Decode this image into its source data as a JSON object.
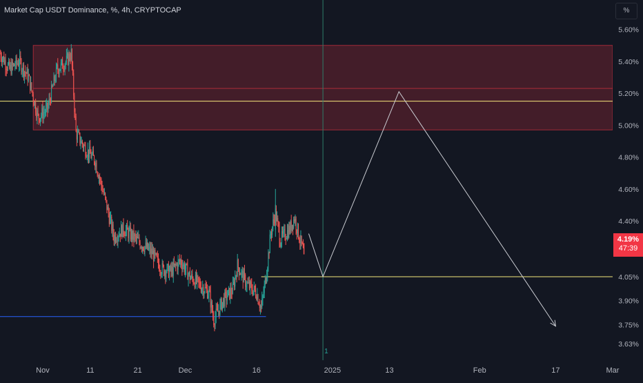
{
  "header": {
    "title": "Market Cap USDT Dominance, %, 4h, CRYPTOCAP",
    "scale_mode": "%"
  },
  "price_badge": {
    "value": "4.19%",
    "countdown": "47:39",
    "color": "#f23645"
  },
  "colors": {
    "background": "#131722",
    "candle_up": "#26a69a",
    "candle_down": "#ef5350",
    "resistance_zone": "#f23645",
    "yellow_line": "#f6e97c",
    "blue_line": "#2962ff",
    "projection": "#c9cbd1",
    "crosshair": "#2e7d6a"
  },
  "marker": {
    "label": "1"
  },
  "chart_data": {
    "type": "candlestick",
    "title": "Market Cap USDT Dominance, %, 4h, CRYPTOCAP",
    "y_unit": "%",
    "ylim": [
      3.6,
      5.62
    ],
    "y_ticks": [
      {
        "value": 5.6,
        "label": "5.60%"
      },
      {
        "value": 5.4,
        "label": "5.40%"
      },
      {
        "value": 5.2,
        "label": "5.20%"
      },
      {
        "value": 5.0,
        "label": "5.00%"
      },
      {
        "value": 4.8,
        "label": "4.80%"
      },
      {
        "value": 4.6,
        "label": "4.60%"
      },
      {
        "value": 4.4,
        "label": "4.40%"
      },
      {
        "value": 4.05,
        "label": "4.05%"
      },
      {
        "value": 3.9,
        "label": "3.90%"
      },
      {
        "value": 3.75,
        "label": "3.75%"
      },
      {
        "value": 3.63,
        "label": "3.63%"
      }
    ],
    "xlim": [
      "2024-10-23",
      "2025-03-01"
    ],
    "x_ticks": [
      {
        "date": "2024-11-01",
        "label": "Nov"
      },
      {
        "date": "2024-11-11",
        "label": "11"
      },
      {
        "date": "2024-11-21",
        "label": "21"
      },
      {
        "date": "2024-12-01",
        "label": "Dec"
      },
      {
        "date": "2024-12-16",
        "label": "16"
      },
      {
        "date": "2025-01-01",
        "label": "2025"
      },
      {
        "date": "2025-01-13",
        "label": "13"
      },
      {
        "date": "2025-02-01",
        "label": "Feb"
      },
      {
        "date": "2025-02-17",
        "label": "17"
      },
      {
        "date": "2025-03-01",
        "label": "Mar"
      }
    ],
    "price_path": [
      [
        "2024-10-23",
        5.45
      ],
      [
        "2024-10-25",
        5.35
      ],
      [
        "2024-10-27",
        5.4
      ],
      [
        "2024-10-29",
        5.3
      ],
      [
        "2024-10-31",
        5.05
      ],
      [
        "2024-11-02",
        5.1
      ],
      [
        "2024-11-04",
        5.35
      ],
      [
        "2024-11-06",
        5.4
      ],
      [
        "2024-11-07",
        5.45
      ],
      [
        "2024-11-08",
        4.95
      ],
      [
        "2024-11-10",
        4.85
      ],
      [
        "2024-11-12",
        4.78
      ],
      [
        "2024-11-14",
        4.55
      ],
      [
        "2024-11-16",
        4.3
      ],
      [
        "2024-11-18",
        4.35
      ],
      [
        "2024-11-20",
        4.3
      ],
      [
        "2024-11-22",
        4.25
      ],
      [
        "2024-11-24",
        4.2
      ],
      [
        "2024-11-26",
        4.1
      ],
      [
        "2024-11-28",
        4.08
      ],
      [
        "2024-11-30",
        4.15
      ],
      [
        "2024-12-02",
        4.05
      ],
      [
        "2024-12-04",
        4.0
      ],
      [
        "2024-12-06",
        3.95
      ],
      [
        "2024-12-07",
        3.78
      ],
      [
        "2024-12-09",
        3.9
      ],
      [
        "2024-12-11",
        3.97
      ],
      [
        "2024-12-12",
        4.12
      ],
      [
        "2024-12-14",
        4.0
      ],
      [
        "2024-12-16",
        3.95
      ],
      [
        "2024-12-17",
        3.85
      ],
      [
        "2024-12-18",
        4.05
      ],
      [
        "2024-12-19",
        4.32
      ],
      [
        "2024-12-20",
        4.45
      ],
      [
        "2024-12-21",
        4.28
      ],
      [
        "2024-12-23",
        4.35
      ],
      [
        "2024-12-24",
        4.42
      ],
      [
        "2024-12-25",
        4.3
      ],
      [
        "2024-12-26",
        4.19
      ]
    ],
    "resistance_zone": {
      "from": "2024-10-30",
      "y_low": 4.97,
      "y_high": 5.5
    },
    "resistance_zone_midline": 5.23,
    "horizontal_lines": [
      {
        "name": "yellow-upper",
        "y": 5.15,
        "from": "2024-10-23",
        "color": "#f6e97c"
      },
      {
        "name": "yellow-lower",
        "y": 4.05,
        "from": "2024-12-17",
        "color": "#f6e97c"
      },
      {
        "name": "blue-support",
        "y": 3.8,
        "from": "2024-10-23",
        "to": "2024-12-18",
        "color": "#2962ff"
      }
    ],
    "crosshair_date": "2024-12-30",
    "projection_path": [
      [
        "2024-12-27",
        4.32
      ],
      [
        "2024-12-30",
        4.05
      ],
      [
        "2025-01-15",
        5.21
      ],
      [
        "2025-02-17",
        3.74
      ]
    ],
    "last_price": 4.19
  }
}
